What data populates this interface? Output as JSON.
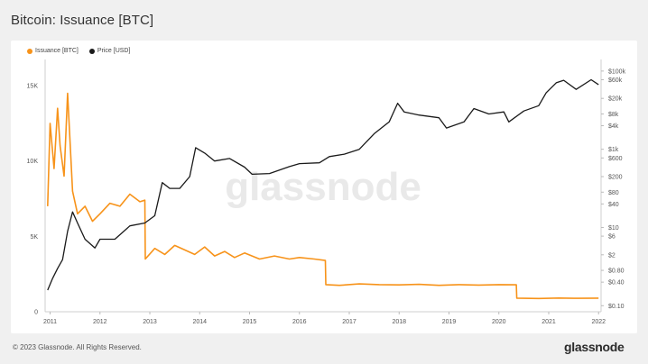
{
  "page": {
    "title": "Bitcoin: Issuance [BTC]",
    "copyright": "© 2023 Glassnode. All Rights Reserved.",
    "watermark": "glassnode",
    "footer_logo": "glassnode"
  },
  "chart_data": {
    "type": "line",
    "title": "Bitcoin: Issuance [BTC]",
    "xlabel": "",
    "ylabel": "",
    "grid": false,
    "legend_position": "top-left",
    "x_ticks": [
      "2011",
      "2012",
      "2013",
      "2014",
      "2015",
      "2016",
      "2017",
      "2018",
      "2019",
      "2020",
      "2021",
      "2022"
    ],
    "y_left": {
      "ticks": [
        0,
        5000,
        10000,
        15000
      ],
      "tick_labels": [
        "0",
        "5K",
        "10K",
        "15K"
      ],
      "ylim": [
        0,
        16500
      ]
    },
    "y_right": {
      "scale": "log",
      "ticks": [
        0.1,
        0.4,
        0.8,
        2,
        6,
        10,
        40,
        80,
        200,
        600,
        1000,
        4000,
        8000,
        20000,
        60000,
        100000
      ],
      "tick_labels": [
        "$0.10",
        "$0.40",
        "$0.80",
        "$2",
        "$6",
        "$10",
        "$40",
        "$80",
        "$200",
        "$600",
        "$1k",
        "$4k",
        "$8k",
        "$20k",
        "$60k",
        "$100k"
      ],
      "ylim": [
        0.07,
        160000
      ]
    },
    "series": [
      {
        "name": "Issuance [BTC]",
        "axis": "left",
        "color": "#f7931a",
        "x": [
          2010.95,
          2011.0,
          2011.08,
          2011.15,
          2011.2,
          2011.28,
          2011.35,
          2011.45,
          2011.55,
          2011.7,
          2011.85,
          2012.0,
          2012.2,
          2012.4,
          2012.6,
          2012.8,
          2012.9,
          2012.91,
          2013.1,
          2013.3,
          2013.5,
          2013.7,
          2013.9,
          2014.1,
          2014.3,
          2014.5,
          2014.7,
          2014.9,
          2015.2,
          2015.5,
          2015.8,
          2016.0,
          2016.3,
          2016.52,
          2016.53,
          2016.8,
          2017.2,
          2017.6,
          2018.0,
          2018.4,
          2018.8,
          2019.2,
          2019.6,
          2020.0,
          2020.35,
          2020.36,
          2020.8,
          2021.2,
          2021.6,
          2022.0
        ],
        "values": [
          7000,
          12500,
          9500,
          13500,
          11000,
          9000,
          14500,
          8000,
          6500,
          7000,
          6000,
          6500,
          7200,
          7000,
          7800,
          7300,
          7400,
          3500,
          4200,
          3800,
          4400,
          4100,
          3800,
          4300,
          3700,
          4000,
          3600,
          3900,
          3500,
          3700,
          3500,
          3600,
          3500,
          3400,
          1800,
          1750,
          1850,
          1800,
          1780,
          1820,
          1750,
          1800,
          1770,
          1800,
          1790,
          900,
          880,
          910,
          890,
          900
        ]
      },
      {
        "name": "Price [USD]",
        "axis": "right",
        "color": "#1a1a1a",
        "x": [
          2010.95,
          2011.05,
          2011.15,
          2011.25,
          2011.35,
          2011.45,
          2011.55,
          2011.7,
          2011.9,
          2012.0,
          2012.3,
          2012.6,
          2012.9,
          2013.1,
          2013.25,
          2013.4,
          2013.6,
          2013.8,
          2013.92,
          2014.1,
          2014.3,
          2014.6,
          2014.9,
          2015.05,
          2015.4,
          2015.8,
          2016.0,
          2016.4,
          2016.6,
          2016.9,
          2017.2,
          2017.5,
          2017.8,
          2017.97,
          2018.1,
          2018.4,
          2018.8,
          2018.95,
          2019.3,
          2019.5,
          2019.8,
          2020.1,
          2020.2,
          2020.5,
          2020.8,
          2020.95,
          2021.15,
          2021.3,
          2021.55,
          2021.85,
          2022.0
        ],
        "values": [
          0.25,
          0.5,
          0.9,
          1.5,
          8,
          25,
          13,
          5,
          3,
          5,
          5,
          11,
          13,
          20,
          140,
          100,
          100,
          200,
          1100,
          800,
          500,
          580,
          350,
          230,
          240,
          360,
          430,
          450,
          650,
          750,
          1000,
          2500,
          5000,
          15000,
          9000,
          7500,
          6400,
          3500,
          5000,
          11000,
          8000,
          9000,
          5000,
          9500,
          13000,
          28000,
          50000,
          58000,
          34000,
          60000,
          45000
        ]
      }
    ]
  }
}
